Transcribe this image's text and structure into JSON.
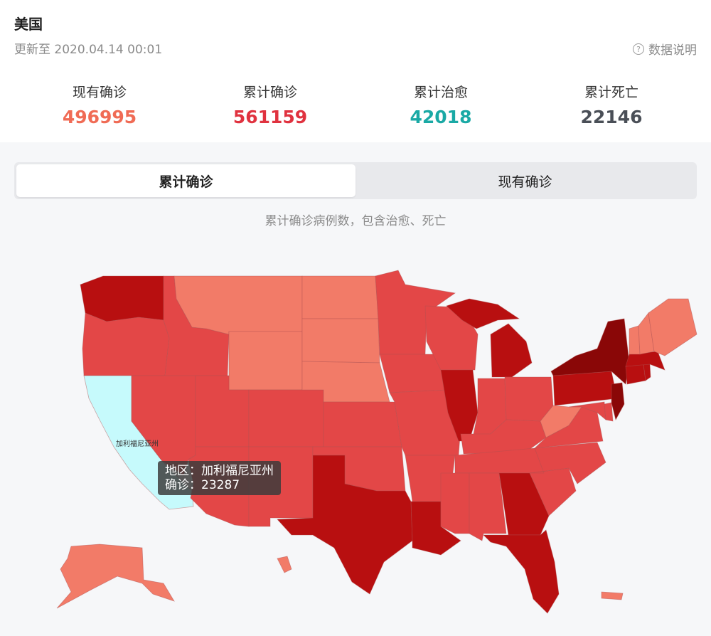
{
  "header": {
    "title": "美国",
    "update_time": "更新至 2020.04.14 00:01",
    "info_link": "数据说明"
  },
  "stats": [
    {
      "label": "现有确诊",
      "value": "496995",
      "color": "#f06b55"
    },
    {
      "label": "累计确诊",
      "value": "561159",
      "color": "#e0323f"
    },
    {
      "label": "累计治愈",
      "value": "42018",
      "color": "#1aa9a5"
    },
    {
      "label": "累计死亡",
      "value": "22146",
      "color": "#4a4f57"
    }
  ],
  "tabs": [
    {
      "label": "累计确诊",
      "active": true
    },
    {
      "label": "现有确诊",
      "active": false
    }
  ],
  "caption": "累计确诊病例数，包含治愈、死亡",
  "map": {
    "highlighted_region": "加利福尼亚州",
    "tooltip": {
      "line1": "地区：加利福尼亚州",
      "line2": "确诊：23287"
    },
    "colors": {
      "light": "#f27b68",
      "medium": "#e34747",
      "dark": "#b80f10",
      "darkest": "#8a0707",
      "highlight": "#c6fafc"
    }
  }
}
